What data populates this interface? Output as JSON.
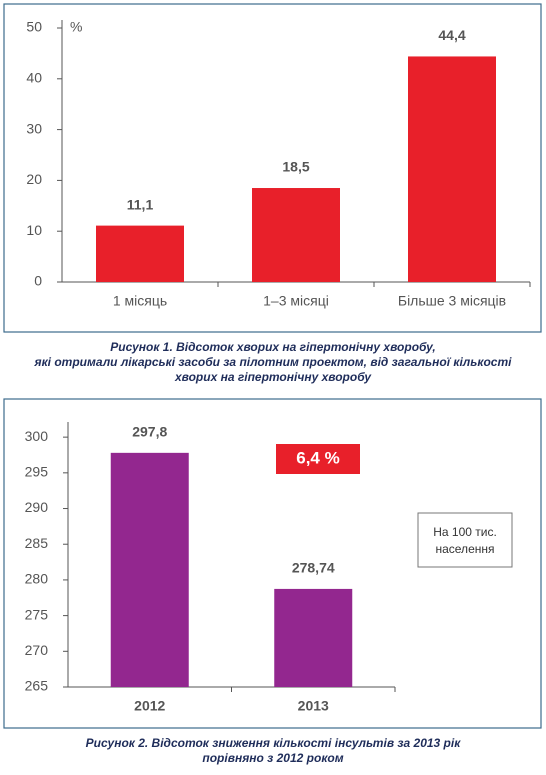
{
  "chart_data": [
    {
      "type": "bar",
      "y_unit": "%",
      "categories": [
        "1 місяць",
        "1–3 місяці",
        "Більше 3 місяців"
      ],
      "values": [
        11.1,
        18.5,
        44.4
      ],
      "value_labels": [
        "11,1",
        "18,5",
        "44,4"
      ],
      "color": "#e8202a",
      "ylim": [
        0,
        50
      ],
      "yticks": [
        0,
        10,
        20,
        30,
        40,
        50
      ],
      "caption": [
        "Рисунок 1.  Відсоток хворих на гіпертонічну хворобу,",
        "які отримали лікарські засоби за пілотним проектом, від загальної кількості",
        "хворих на гіпертонічну хворобу"
      ]
    },
    {
      "type": "bar",
      "categories": [
        "2012",
        "2013"
      ],
      "values": [
        297.8,
        278.74
      ],
      "value_labels": [
        "297,8",
        "278,74"
      ],
      "color": "#93278f",
      "ylim": [
        265,
        301
      ],
      "yticks": [
        265,
        270,
        275,
        280,
        285,
        290,
        295,
        300
      ],
      "highlight": "6,4 %",
      "note": [
        "На 100 тис.",
        "населення"
      ],
      "caption": [
        "Рисунок 2.  Відсоток зниження кількості інсультів за 2013 рік",
        "порівняно з 2012 роком"
      ]
    }
  ]
}
